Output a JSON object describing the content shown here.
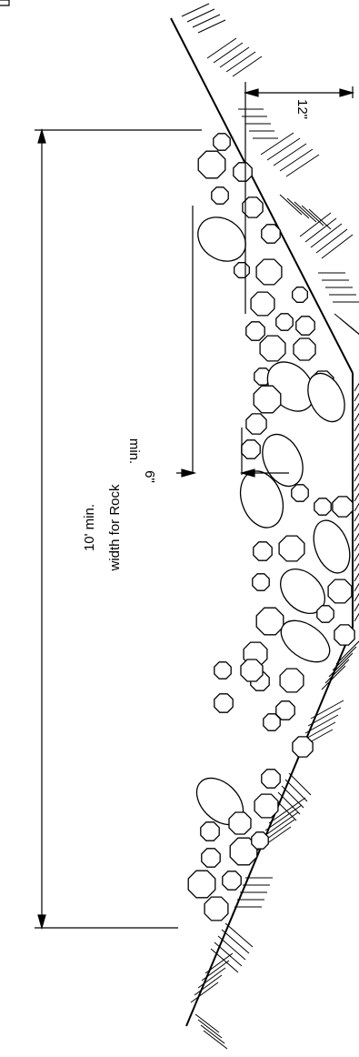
{
  "labels": {
    "width_value": "10' min.",
    "width_caption": "width for Rock",
    "depth_value": "6\"",
    "depth_caption": "min.",
    "thickness_value": "12\""
  },
  "colors": {
    "line": "#000000",
    "background": "#ffffff"
  }
}
